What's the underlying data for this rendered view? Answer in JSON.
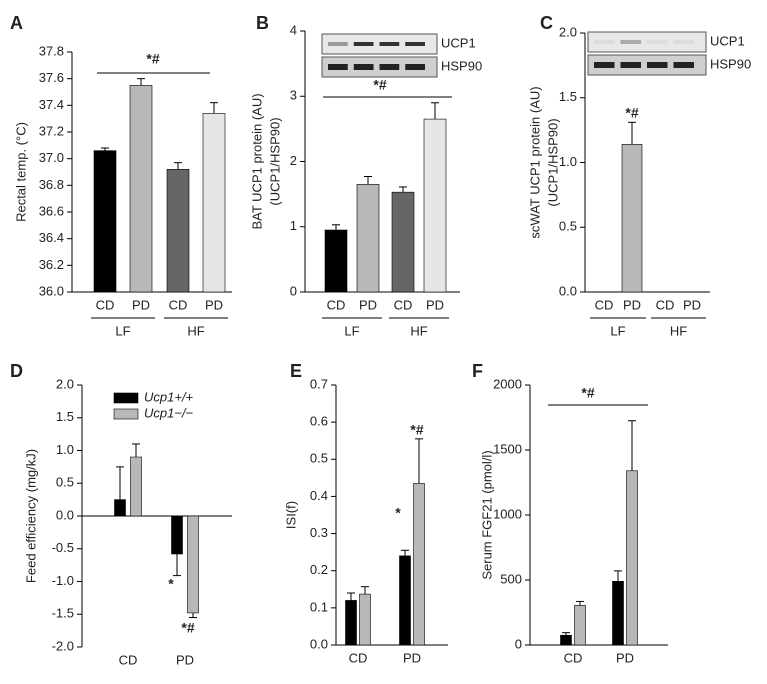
{
  "chart_data": [
    {
      "type": "bar",
      "panel": "A",
      "y_label": "Rectal temp. (°C)",
      "categories": [
        "CD",
        "PD",
        "CD",
        "PD"
      ],
      "groups": [
        "LF",
        "HF"
      ],
      "values": [
        37.06,
        37.55,
        36.92,
        37.34
      ],
      "errors": [
        0.02,
        0.05,
        0.05,
        0.08
      ],
      "colors": [
        "#000000",
        "#b8b8b8",
        "#666666",
        "#e6e6e6"
      ],
      "ylim": [
        36.0,
        37.8
      ],
      "yticks": [
        {
          "value": 36.0,
          "label": "36.0"
        },
        {
          "value": 36.2,
          "label": "36.2"
        },
        {
          "value": 36.4,
          "label": "36.4"
        },
        {
          "value": 36.6,
          "label": "36.6"
        },
        {
          "value": 36.8,
          "label": "36.8"
        },
        {
          "value": 37.0,
          "label": "37.0"
        },
        {
          "value": 37.2,
          "label": "37.2"
        },
        {
          "value": 37.4,
          "label": "37.4"
        },
        {
          "value": 37.6,
          "label": "37.6"
        },
        {
          "value": 37.8,
          "label": "37.8"
        }
      ],
      "annotations": [
        "*#"
      ]
    },
    {
      "type": "bar",
      "panel": "B",
      "y_label": [
        "BAT UCP1 protein (AU)",
        "(UCP1/HSP90)"
      ],
      "blot_labels": [
        "UCP1",
        "HSP90"
      ],
      "categories": [
        "CD",
        "PD",
        "CD",
        "PD"
      ],
      "groups": [
        "LF",
        "HF"
      ],
      "values": [
        0.95,
        1.65,
        1.53,
        2.65
      ],
      "errors": [
        0.08,
        0.12,
        0.08,
        0.25
      ],
      "colors": [
        "#000000",
        "#b8b8b8",
        "#666666",
        "#e6e6e6"
      ],
      "ylim": [
        0,
        4
      ],
      "yticks": [
        0,
        1,
        2,
        3,
        4
      ],
      "annotations": [
        "*#"
      ]
    },
    {
      "type": "bar",
      "panel": "C",
      "y_label": [
        "scWAT UCP1 protein (AU)",
        "(UCP1/HSP90)"
      ],
      "blot_labels": [
        "UCP1",
        "HSP90"
      ],
      "categories": [
        "CD",
        "PD",
        "CD",
        "PD"
      ],
      "groups": [
        "LF",
        "HF"
      ],
      "values": [
        0,
        1.14,
        0,
        0
      ],
      "errors": [
        0,
        0.17,
        0,
        0
      ],
      "colors": [
        "#000000",
        "#b8b8b8",
        "#666666",
        "#e6e6e6"
      ],
      "ylim": [
        0,
        2
      ],
      "yticks": [
        {
          "value": 0,
          "label": "0.0"
        },
        {
          "value": 0.5,
          "label": "0.5"
        },
        {
          "value": 1,
          "label": "1.0"
        },
        {
          "value": 1.5,
          "label": "1.5"
        },
        {
          "value": 2,
          "label": "2.0"
        }
      ],
      "annotations": [
        "*#"
      ]
    },
    {
      "type": "bar",
      "panel": "D",
      "y_label": "Feed efficiency (mg/kJ)",
      "categories": [
        "CD",
        "PD"
      ],
      "series": [
        {
          "name": "Ucp1+/+",
          "color": "#000000",
          "values": [
            0.25,
            -0.58
          ],
          "errors": [
            0.5,
            0.33
          ]
        },
        {
          "name": "Ucp1−/−",
          "color": "#b8b8b8",
          "values": [
            0.9,
            -1.48
          ],
          "errors": [
            0.2,
            0.07
          ]
        }
      ],
      "ylim": [
        -2,
        2
      ],
      "yticks": [
        {
          "value": -2,
          "label": "-2.0"
        },
        {
          "value": -1.5,
          "label": "-1.5"
        },
        {
          "value": -1,
          "label": "-1.0"
        },
        {
          "value": -0.5,
          "label": "-0.5"
        },
        {
          "value": 0,
          "label": "0.0"
        },
        {
          "value": 0.5,
          "label": "0.5"
        },
        {
          "value": 1,
          "label": "1.0"
        },
        {
          "value": 1.5,
          "label": "1.5"
        },
        {
          "value": 2,
          "label": "2.0"
        }
      ],
      "annotations": [
        "*",
        "*#"
      ]
    },
    {
      "type": "bar",
      "panel": "E",
      "y_label": "ISI(f)",
      "categories": [
        "CD",
        "PD"
      ],
      "series": [
        {
          "color": "#000000",
          "values": [
            0.12,
            0.24
          ],
          "errors": [
            0.02,
            0.015
          ]
        },
        {
          "color": "#b8b8b8",
          "values": [
            0.137,
            0.435
          ],
          "errors": [
            0.02,
            0.12
          ]
        }
      ],
      "ylim": [
        0,
        0.7
      ],
      "yticks": [
        {
          "value": 0,
          "label": "0.0"
        },
        0.1,
        0.2,
        0.3,
        0.4,
        0.5,
        0.6,
        0.7
      ],
      "annotations": [
        "*",
        "*#"
      ]
    },
    {
      "type": "bar",
      "panel": "F",
      "y_label": "Serum FGF21 (pmol/l)",
      "categories": [
        "CD",
        "PD"
      ],
      "series": [
        {
          "color": "#000000",
          "values": [
            75,
            490
          ],
          "errors": [
            20,
            80
          ]
        },
        {
          "color": "#b8b8b8",
          "values": [
            305,
            1340
          ],
          "errors": [
            30,
            385
          ]
        }
      ],
      "ylim": [
        0,
        2000
      ],
      "yticks": [
        0,
        500,
        1000,
        1500,
        2000
      ],
      "annotations": [
        "*#"
      ]
    }
  ]
}
